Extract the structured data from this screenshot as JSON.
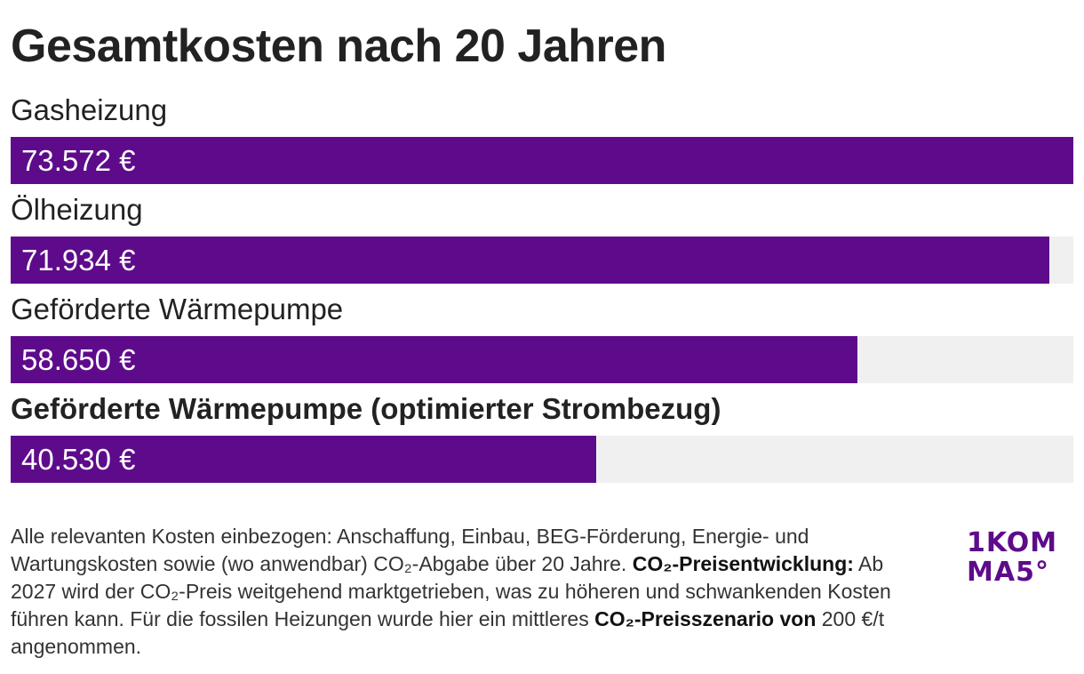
{
  "chart_data": {
    "type": "bar",
    "orientation": "horizontal",
    "title": "Gesamtkosten nach 20 Jahren",
    "categories": [
      "Gasheizung",
      "Ölheizung",
      "Geförderte Wärmepumpe",
      "Geförderte Wärmepumpe (optimierter Strombezug)"
    ],
    "values": [
      73572,
      71934,
      58650,
      40530
    ],
    "value_labels": [
      "73.572 €",
      "71.934 €",
      "58.650 €",
      "40.530 €"
    ],
    "highlighted_category_index": 3,
    "xlim": [
      0,
      73572
    ],
    "grid": false,
    "legend": "none",
    "bar_color": "#5e0b8b",
    "track_color": "#f0f0f0"
  },
  "footnote": {
    "part1": "Alle relevanten Kosten einbezogen: Anschaffung, Einbau, BEG-Förderung, Energie- und Wartungskosten sowie (wo anwendbar) CO₂-Abgabe über 20 Jahre. ",
    "bold1": "CO₂-Preisentwicklung:",
    "part2": " Ab 2027 wird der CO₂-Preis weitgehend marktgetrieben, was zu höheren und schwankenden Kosten führen kann. Für die fossilen Heizungen wurde hier ein mittleres ",
    "bold2": "CO₂-Preisszenario von",
    "part3": " 200 €/t angenommen."
  },
  "logo": {
    "line1": "1KOM",
    "line2": "MA5°",
    "color": "#5e0b8b"
  }
}
